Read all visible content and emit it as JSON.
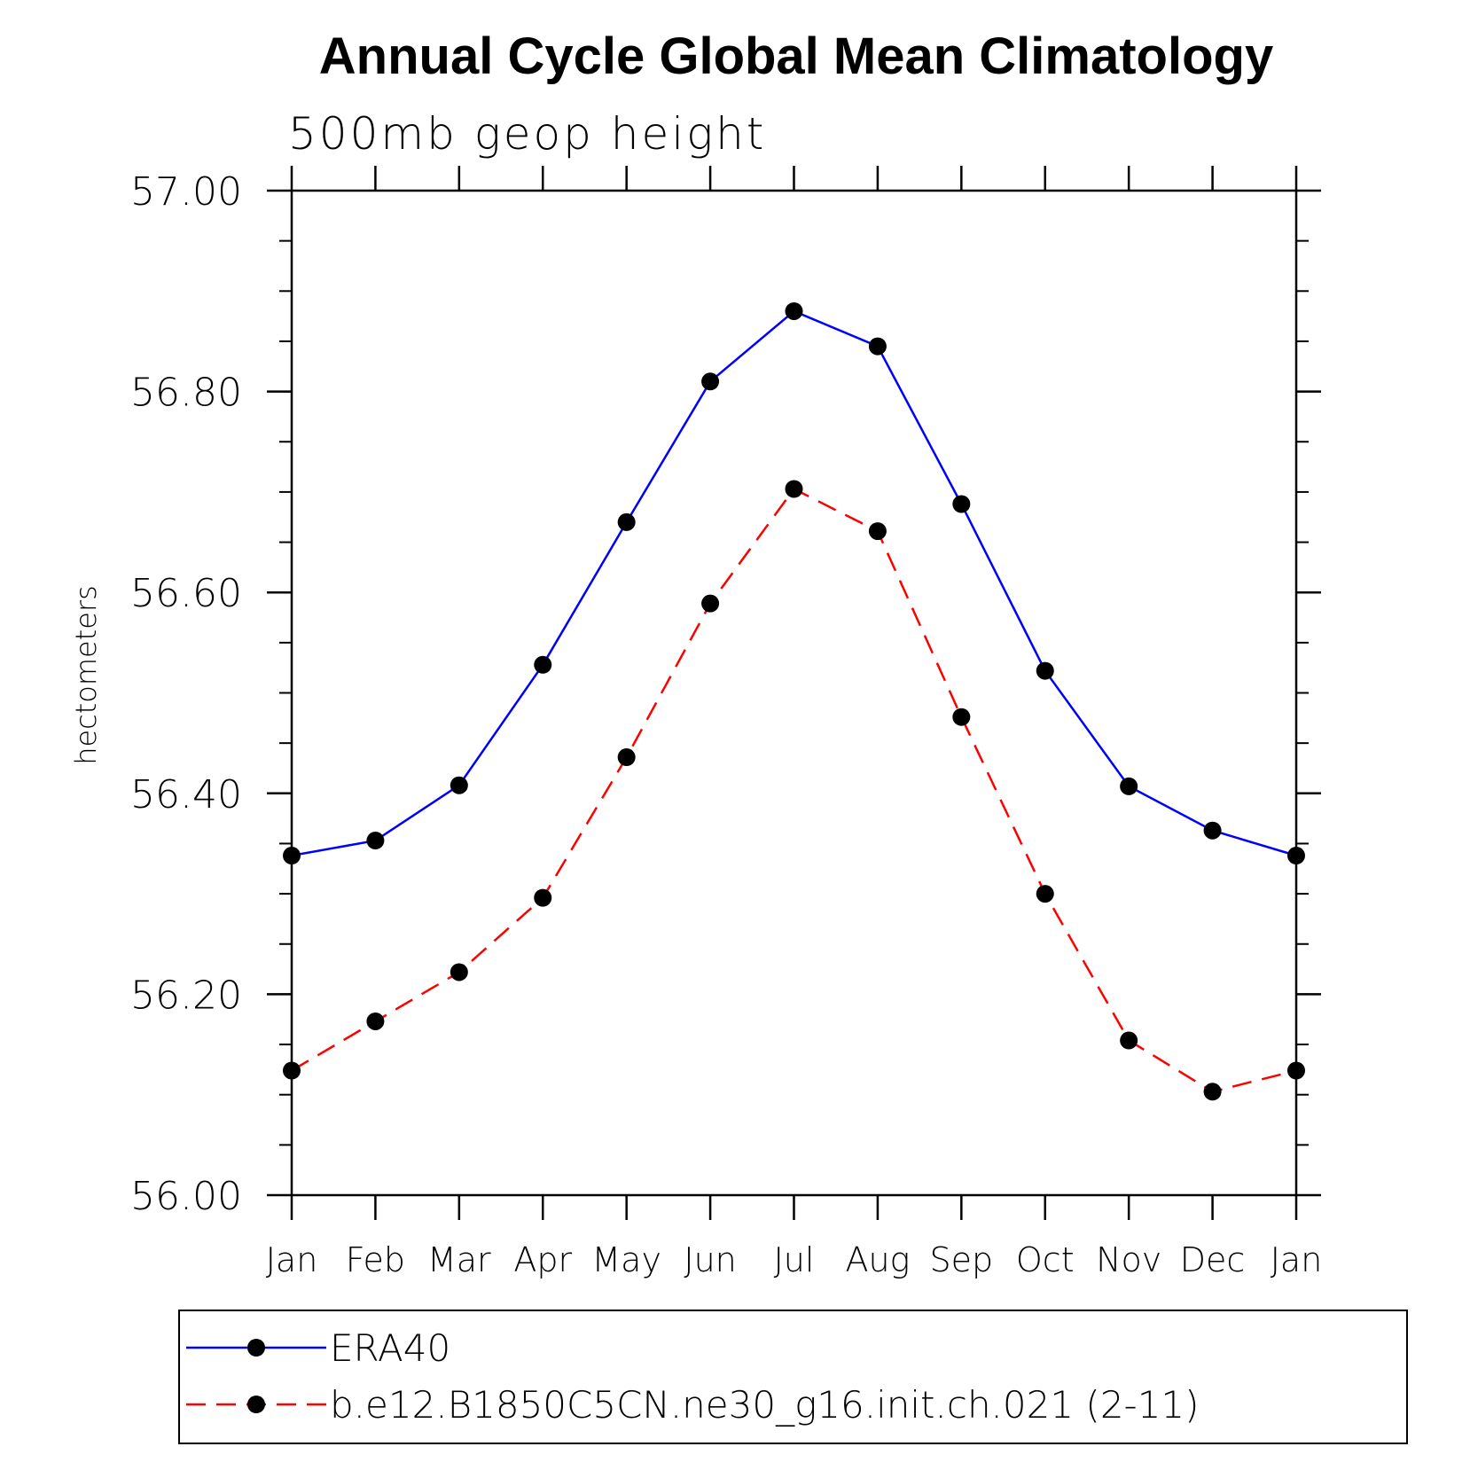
{
  "chart_data": {
    "type": "line",
    "title": "Annual Cycle Global Mean Climatology",
    "subtitle": "500mb geop height",
    "xlabel": "",
    "ylabel": "hectometers",
    "categories": [
      "Jan",
      "Feb",
      "Mar",
      "Apr",
      "May",
      "Jun",
      "Jul",
      "Aug",
      "Sep",
      "Oct",
      "Nov",
      "Dec",
      "Jan"
    ],
    "ylim": [
      56.0,
      57.0
    ],
    "yticks": [
      "56.00",
      "56.20",
      "56.40",
      "56.60",
      "56.80",
      "57.00"
    ],
    "yminor_step": 0.05,
    "grid": false,
    "legend_position": "bottom",
    "series": [
      {
        "name": "ERA40",
        "color": "#0000ff",
        "dash": "solid",
        "marker": "filled-circle",
        "values": [
          56.338,
          56.353,
          56.408,
          56.528,
          56.67,
          56.81,
          56.88,
          56.845,
          56.688,
          56.522,
          56.407,
          56.363,
          56.338
        ]
      },
      {
        "name": "b.e12.B1850C5CN.ne30_g16.init.ch.021 (2-11)",
        "color": "#ff0000",
        "dash": "dashed",
        "marker": "filled-circle",
        "values": [
          56.124,
          56.173,
          56.222,
          56.296,
          56.436,
          56.589,
          56.703,
          56.661,
          56.476,
          56.3,
          56.154,
          56.103,
          56.124
        ]
      }
    ]
  }
}
